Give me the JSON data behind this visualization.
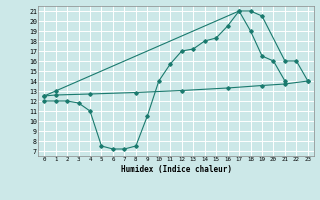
{
  "xlabel": "Humidex (Indice chaleur)",
  "bg_color": "#cce8e8",
  "grid_color": "#ffffff",
  "line_color": "#1a7a6e",
  "xlim": [
    -0.5,
    23.5
  ],
  "ylim": [
    6.5,
    21.5
  ],
  "xticks": [
    0,
    1,
    2,
    3,
    4,
    5,
    6,
    7,
    8,
    9,
    10,
    11,
    12,
    13,
    14,
    15,
    16,
    17,
    18,
    19,
    20,
    21,
    22,
    23
  ],
  "yticks": [
    7,
    8,
    9,
    10,
    11,
    12,
    13,
    14,
    15,
    16,
    17,
    18,
    19,
    20,
    21
  ],
  "line1_x": [
    0,
    1,
    17,
    18,
    19,
    21,
    22,
    23
  ],
  "line1_y": [
    12.5,
    13.0,
    21.0,
    21.0,
    20.5,
    16.0,
    16.0,
    14.0
  ],
  "line2_x": [
    0,
    1,
    4,
    8,
    12,
    16,
    19,
    21,
    23
  ],
  "line2_y": [
    12.5,
    12.6,
    12.7,
    12.85,
    13.05,
    13.3,
    13.55,
    13.7,
    14.0
  ],
  "line3_x": [
    0,
    1,
    2,
    3,
    4,
    5,
    6,
    7,
    8,
    9,
    10,
    11,
    12,
    13,
    14,
    15,
    16,
    17,
    18,
    19,
    20,
    21
  ],
  "line3_y": [
    12.0,
    12.0,
    12.0,
    11.8,
    11.0,
    7.5,
    7.2,
    7.2,
    7.5,
    10.5,
    14.0,
    15.7,
    17.0,
    17.2,
    18.0,
    18.3,
    19.5,
    21.0,
    19.0,
    16.5,
    16.0,
    14.0
  ]
}
